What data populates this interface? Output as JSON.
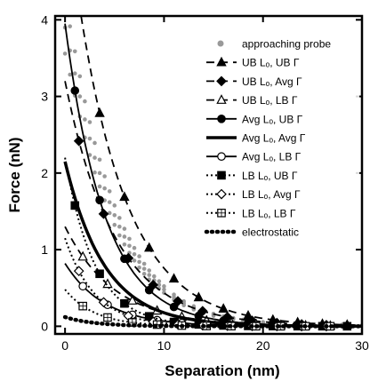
{
  "chart_data": {
    "type": "line",
    "title": "",
    "xlabel": "Separation (nm)",
    "ylabel": "Force (nN)",
    "xlim": [
      -1,
      30
    ],
    "ylim": [
      -0.1,
      4.05
    ],
    "xticks": [
      0,
      10,
      20,
      30
    ],
    "yticks": [
      0,
      1,
      2,
      3,
      4
    ],
    "xtick_labels": [
      "0",
      "10",
      "20",
      "30"
    ],
    "ytick_labels": [
      "0",
      "1",
      "2",
      "3",
      "4"
    ],
    "grid": false,
    "legend_position": "top-right",
    "series": [
      {
        "name": "approaching probe",
        "style": "scatter",
        "color": "#999999",
        "x": [
          0,
          0.5,
          1,
          1.5,
          2,
          2.5,
          3,
          3.5,
          4,
          4.5,
          5,
          5.5,
          6,
          6.5,
          7,
          7.5,
          8,
          8.5,
          9,
          9.5,
          10,
          11,
          12,
          13,
          14,
          15,
          16,
          17,
          18,
          19,
          20,
          22,
          24,
          26,
          28,
          30
        ],
        "y": [
          3.9,
          3.6,
          3.3,
          3.0,
          2.7,
          2.45,
          2.2,
          2.0,
          1.8,
          1.62,
          1.45,
          1.3,
          1.17,
          1.05,
          0.94,
          0.84,
          0.75,
          0.67,
          0.6,
          0.54,
          0.48,
          0.38,
          0.3,
          0.24,
          0.19,
          0.15,
          0.12,
          0.1,
          0.08,
          0.06,
          0.05,
          0.04,
          0.03,
          0.02,
          0.02,
          0.01
        ]
      },
      {
        "name": "UB Lₒ, UB Γ",
        "a": 5.6,
        "lambda": 5.0,
        "dash": "dashed",
        "marker": "triangle-filled"
      },
      {
        "name": "UB Lₒ, Avg Γ",
        "a": 3.2,
        "lambda": 5.0,
        "dash": "dashed",
        "marker": "diamond-filled"
      },
      {
        "name": "UB Lₒ, LB Γ",
        "a": 1.3,
        "lambda": 5.0,
        "dash": "dashed",
        "marker": "triangle-open"
      },
      {
        "name": "Avg Lₒ, UB Γ",
        "a": 3.95,
        "lambda": 4.0,
        "dash": "solid",
        "marker": "circle-filled"
      },
      {
        "name": "Avg Lₒ, Avg Γ",
        "a": 2.15,
        "lambda": 4.0,
        "dash": "solid-thick",
        "marker": "none"
      },
      {
        "name": "Avg Lₒ, LB Γ",
        "a": 0.82,
        "lambda": 4.0,
        "dash": "solid",
        "marker": "circle-open"
      },
      {
        "name": "LB Lₒ, UB Γ",
        "a": 2.2,
        "lambda": 3.0,
        "dash": "dotted",
        "marker": "square-filled"
      },
      {
        "name": "LB Lₒ, Avg Γ",
        "a": 1.15,
        "lambda": 3.0,
        "dash": "dotted",
        "marker": "diamond-open"
      },
      {
        "name": "LB Lₒ, LB Γ",
        "a": 0.48,
        "lambda": 3.0,
        "dash": "dotted",
        "marker": "square-open"
      },
      {
        "name": "electrostatic",
        "a": 0.12,
        "lambda": 3.0,
        "dash": "dotted-heavy",
        "marker": "none"
      }
    ]
  }
}
